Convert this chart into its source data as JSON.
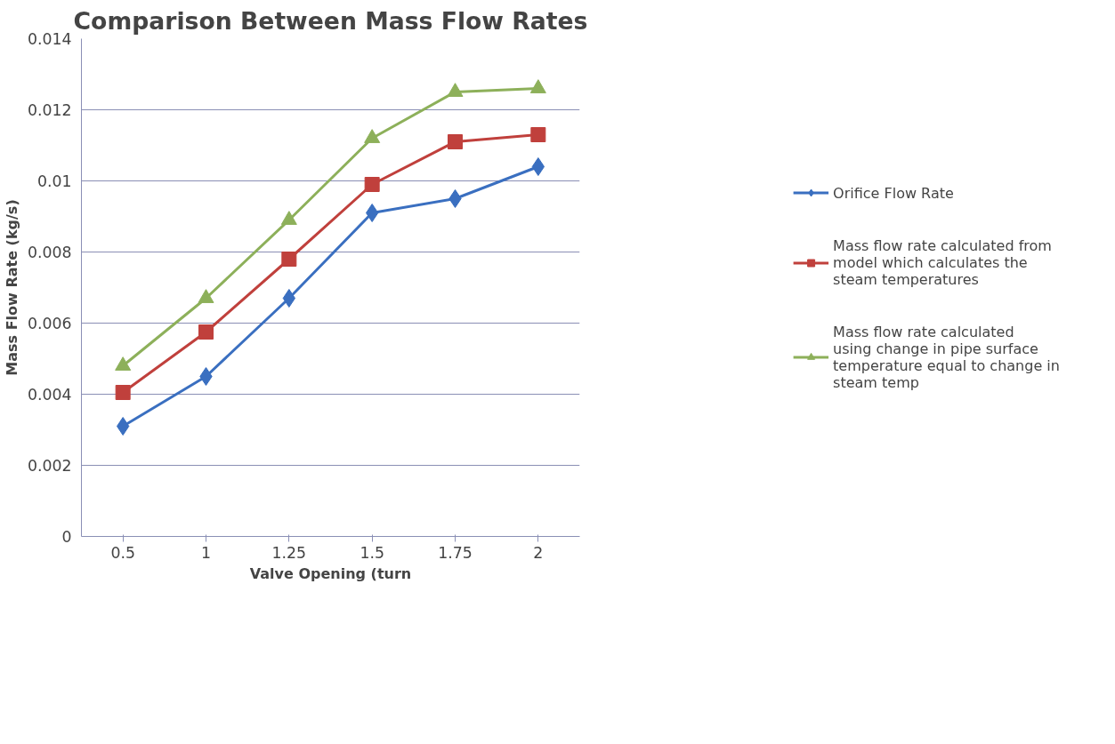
{
  "chart_data": {
    "type": "line",
    "title": "Comparison Between Mass Flow Rates",
    "xlabel": "Valve Opening (turn",
    "ylabel": "Mass Flow Rate (kg/s)",
    "categories": [
      "0.5",
      "1",
      "1.25",
      "1.5",
      "1.75",
      "2"
    ],
    "series": [
      {
        "name": "Orifice Flow Rate",
        "color": "#3a6fc0",
        "marker": "diamond",
        "values": [
          0.0031,
          0.0045,
          0.0067,
          0.0091,
          0.0095,
          0.0104
        ]
      },
      {
        "name": "Mass flow rate calculated from model which calculates the steam temperatures",
        "color": "#c0403c",
        "marker": "square",
        "values": [
          0.00405,
          0.00575,
          0.0078,
          0.0099,
          0.0111,
          0.0113
        ]
      },
      {
        "name": "Mass flow rate calculated using change in pipe surface temperature equal to change in steam temp",
        "color": "#8db05a",
        "marker": "triangle",
        "values": [
          0.0048,
          0.0067,
          0.0089,
          0.0112,
          0.0125,
          0.0126
        ]
      }
    ],
    "ylim": [
      0,
      0.014
    ],
    "yticks": [
      0,
      0.002,
      0.004,
      0.006,
      0.008,
      0.01,
      0.012,
      0.014
    ],
    "grid": "y",
    "legend": "right",
    "line_style": "solid"
  }
}
